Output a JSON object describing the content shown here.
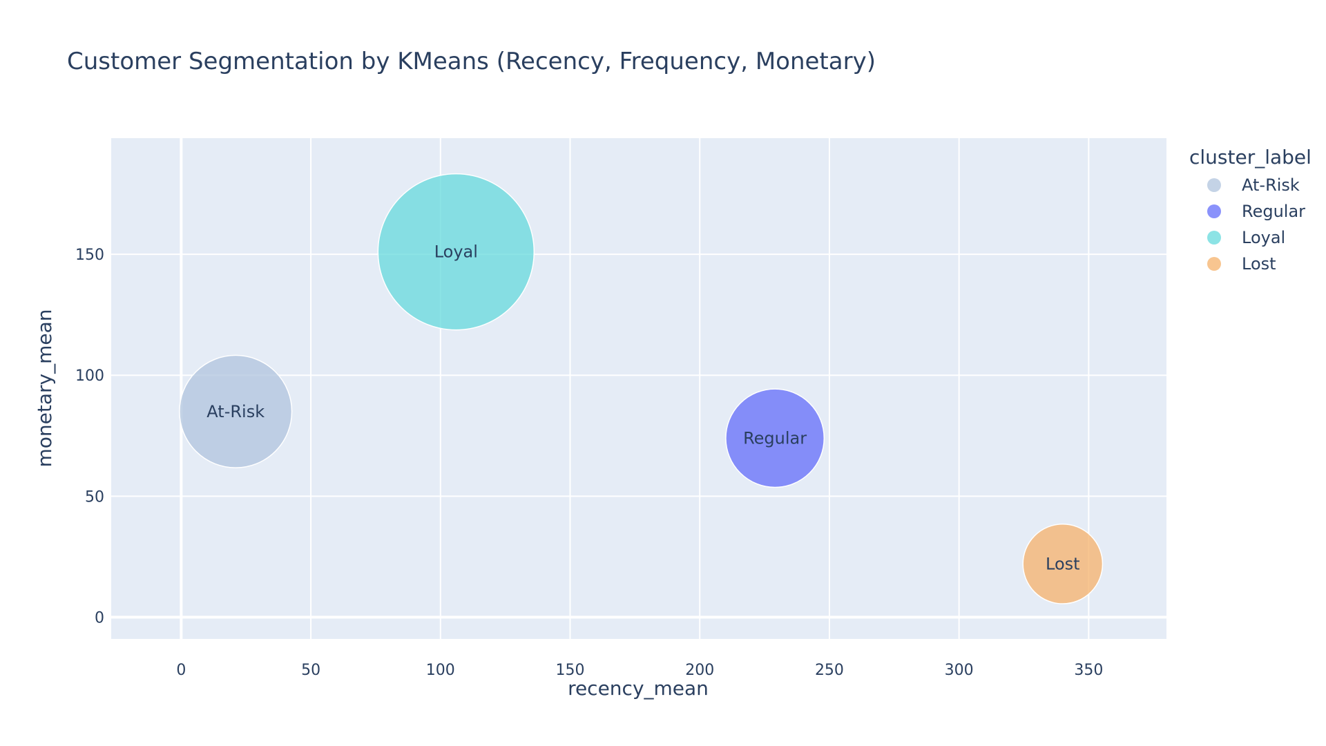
{
  "chart_data": {
    "type": "scatter",
    "subtype": "bubble",
    "title": "Customer Segmentation by KMeans (Recency, Frequency, Monetary)",
    "xlabel": "recency_mean",
    "ylabel": "monetary_mean",
    "xlim": [
      -27,
      380
    ],
    "ylim": [
      -9,
      198
    ],
    "xticks": [
      0,
      50,
      100,
      150,
      200,
      250,
      300,
      350
    ],
    "yticks": [
      0,
      50,
      100,
      150
    ],
    "grid": true,
    "plot_background": "#e5ecf6",
    "legend": {
      "title": "cluster_label",
      "placement": "right"
    },
    "series": [
      {
        "name": "At-Risk",
        "x": 21,
        "y": 85,
        "size": 0.72,
        "color": "#b0c4de"
      },
      {
        "name": "Regular",
        "x": 229,
        "y": 74,
        "size": 0.63,
        "color": "#636efa"
      },
      {
        "name": "Loyal",
        "x": 106,
        "y": 151,
        "size": 1.0,
        "color": "#66d9dc"
      },
      {
        "name": "Lost",
        "x": 340,
        "y": 22,
        "size": 0.51,
        "color": "#f5b26b"
      }
    ]
  }
}
